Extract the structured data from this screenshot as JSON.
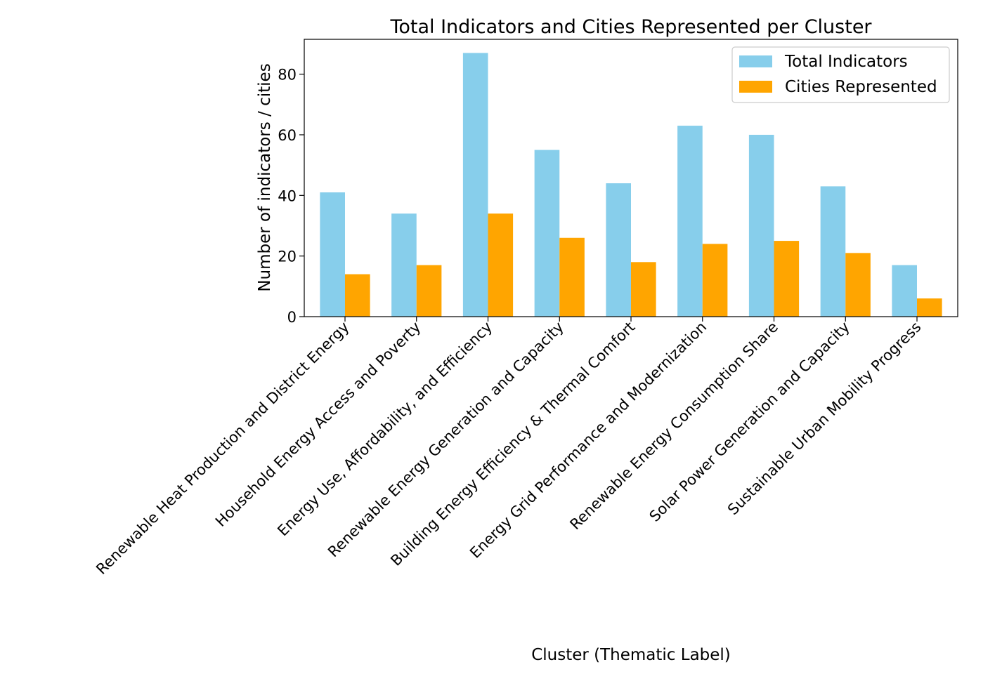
{
  "chart_data": {
    "type": "bar",
    "title": "Total Indicators and Cities Represented per Cluster",
    "xlabel": "Cluster (Thematic Label)",
    "ylabel": "Number of indicators / cities",
    "ylim": [
      0,
      91.5
    ],
    "yticks": [
      0,
      20,
      40,
      60,
      80
    ],
    "grid": false,
    "legend_position": "top-right",
    "categories": [
      "Renewable Heat Production and District Energy",
      "Household Energy Access and Poverty",
      "Energy Use, Affordability, and Efficiency",
      "Renewable Energy Generation and Capacity",
      "Building Energy Efficiency & Thermal Comfort",
      "Energy Grid Performance and Modernization",
      "Renewable Energy Consumption Share",
      "Solar Power Generation and Capacity",
      "Sustainable Urban Mobility Progress"
    ],
    "series": [
      {
        "name": "Total Indicators",
        "color": "#87ceeb",
        "values": [
          41,
          34,
          87,
          55,
          44,
          63,
          60,
          43,
          17
        ]
      },
      {
        "name": "Cities Represented",
        "color": "#ffa500",
        "values": [
          14,
          17,
          34,
          26,
          18,
          24,
          25,
          21,
          6
        ]
      }
    ]
  }
}
